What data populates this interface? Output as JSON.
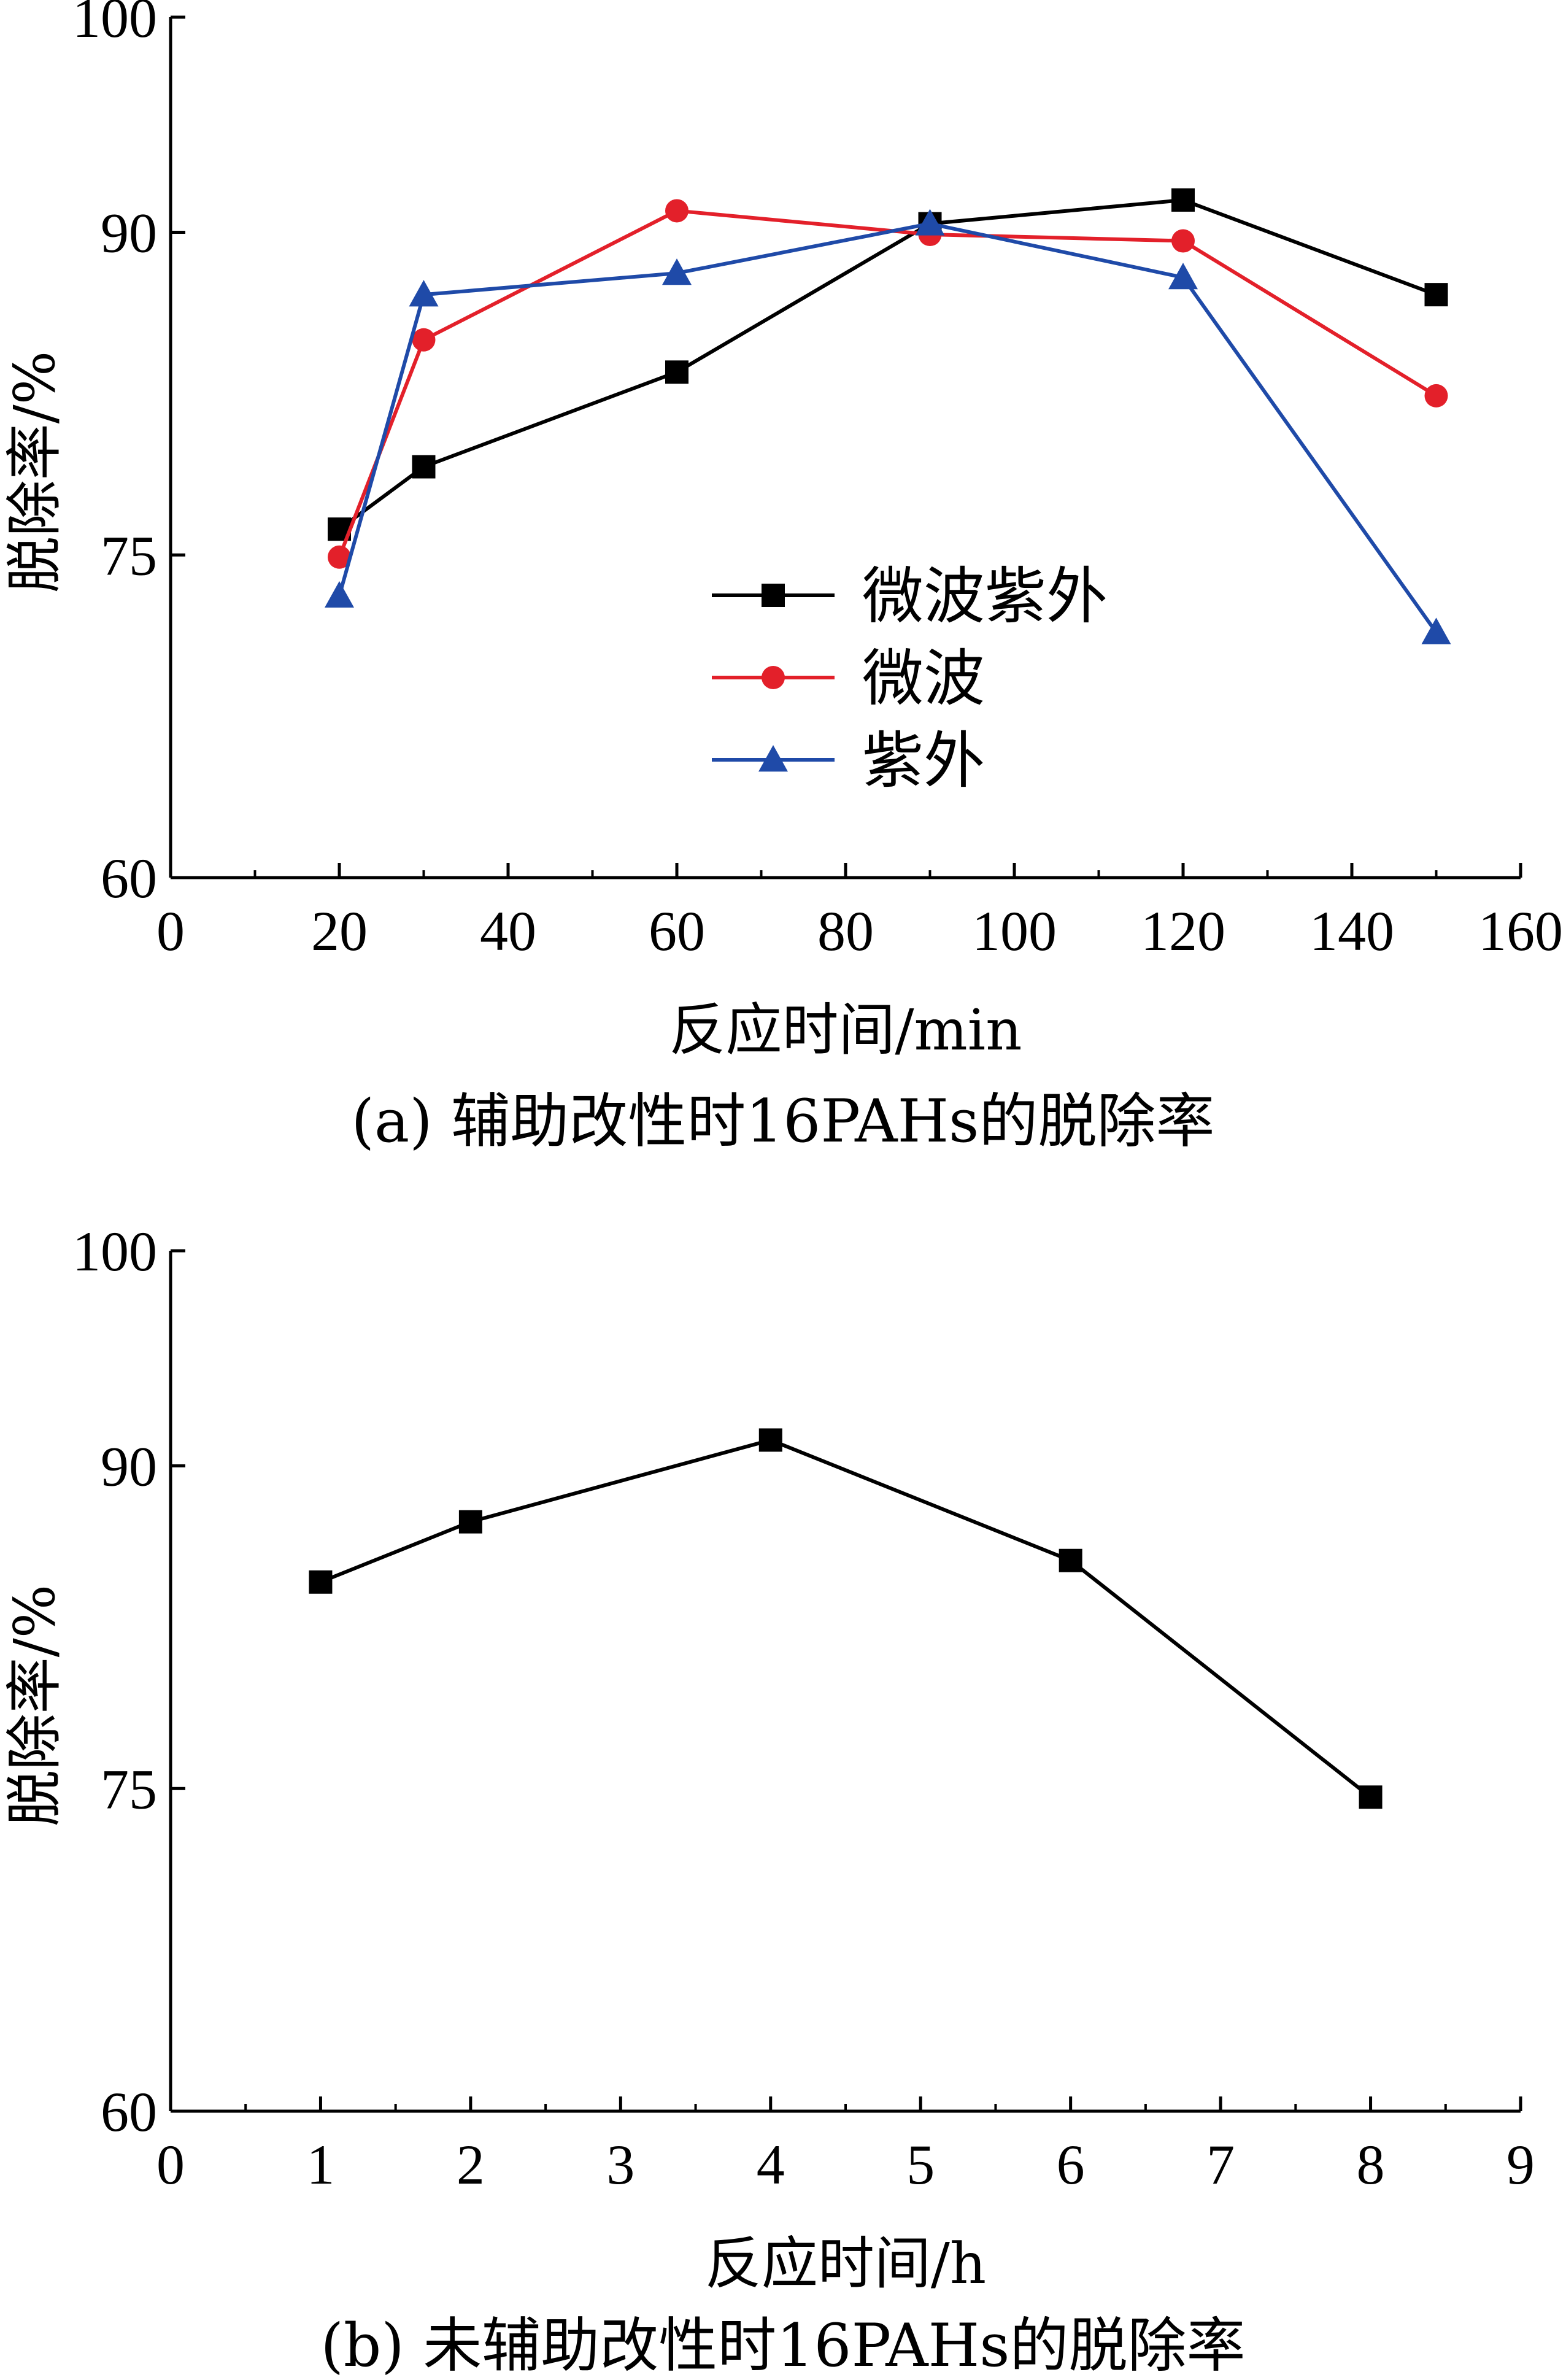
{
  "chart_data": [
    {
      "type": "line",
      "panel": "a",
      "caption": "(a)  辅助改性时16PAHs的脱除率",
      "xlabel": "反应时间/min",
      "ylabel": "脱除率/%",
      "xlim": [
        0,
        160
      ],
      "ylim": [
        60,
        100
      ],
      "xticks": [
        0,
        20,
        40,
        60,
        80,
        100,
        120,
        140,
        160
      ],
      "yticks": [
        60,
        75,
        90,
        100
      ],
      "grid": false,
      "legend_position": "center",
      "x": [
        20,
        30,
        60,
        90,
        120,
        150
      ],
      "series": [
        {
          "name": "微波紫外",
          "marker": "square",
          "color": "#000000",
          "values": [
            76.2,
            79.1,
            83.5,
            90.4,
            91.5,
            87.1
          ]
        },
        {
          "name": "微波",
          "marker": "circle",
          "color": "#e3202a",
          "values": [
            74.9,
            85.0,
            91.0,
            89.9,
            89.6,
            82.4
          ]
        },
        {
          "name": "紫外",
          "marker": "triangle",
          "color": "#1f4aa8",
          "values": [
            73.1,
            87.1,
            88.1,
            90.4,
            87.9,
            71.4
          ]
        }
      ]
    },
    {
      "type": "line",
      "panel": "b",
      "caption": "(b)  未辅助改性时16PAHs的脱除率",
      "xlabel": "反应时间/h",
      "ylabel": "脱除率/%",
      "xlim": [
        0,
        9
      ],
      "ylim": [
        60,
        100
      ],
      "xticks": [
        0,
        1,
        2,
        3,
        4,
        5,
        6,
        7,
        8,
        9
      ],
      "yticks": [
        60,
        75,
        90,
        100
      ],
      "grid": false,
      "x": [
        1,
        2,
        4,
        6,
        8
      ],
      "series": [
        {
          "name": "",
          "marker": "square",
          "color": "#000000",
          "values": [
            84.6,
            87.4,
            91.2,
            85.6,
            74.6
          ]
        }
      ]
    }
  ]
}
